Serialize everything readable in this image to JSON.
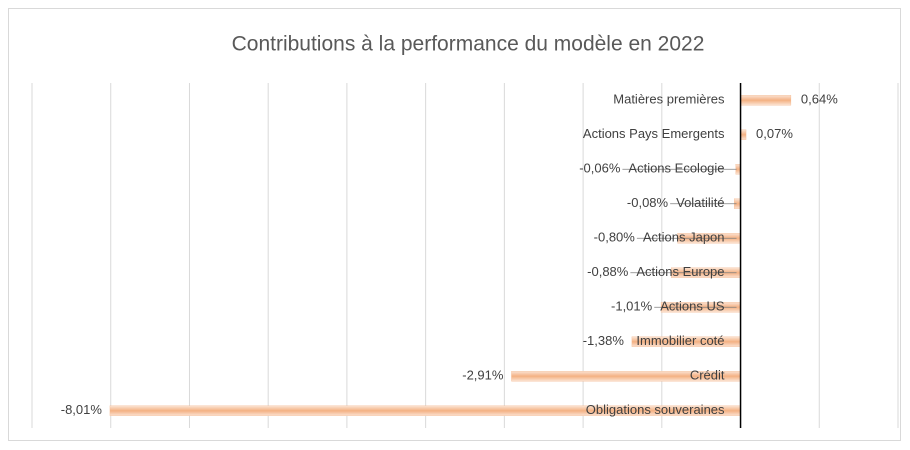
{
  "chart_data": {
    "type": "barh",
    "title": "Contributions à la performance du modèle en 2022",
    "categories": [
      "Matières premières",
      "Actions Pays Emergents",
      "Actions Ecologie",
      "Volatilité",
      "Actions Japon",
      "Actions Europe",
      "Actions US",
      "Immobilier coté",
      "Crédit",
      "Obligations souveraines"
    ],
    "values": [
      0.64,
      0.07,
      -0.06,
      -0.08,
      -0.8,
      -0.88,
      -1.01,
      -1.38,
      -2.91,
      -8.01
    ],
    "value_labels": [
      "0,64%",
      "0,07%",
      "-0,06%",
      "-0,08%",
      "-0,80%",
      "-0,88%",
      "-1,01%",
      "-1,38%",
      "-2,91%",
      "-8,01%"
    ],
    "color": "#f4b183",
    "xlim": [
      -9,
      2
    ],
    "xticks": [
      -9,
      -8,
      -7,
      -6,
      -5,
      -4,
      -3,
      -2,
      -1,
      0,
      1,
      2
    ],
    "grid": true
  }
}
